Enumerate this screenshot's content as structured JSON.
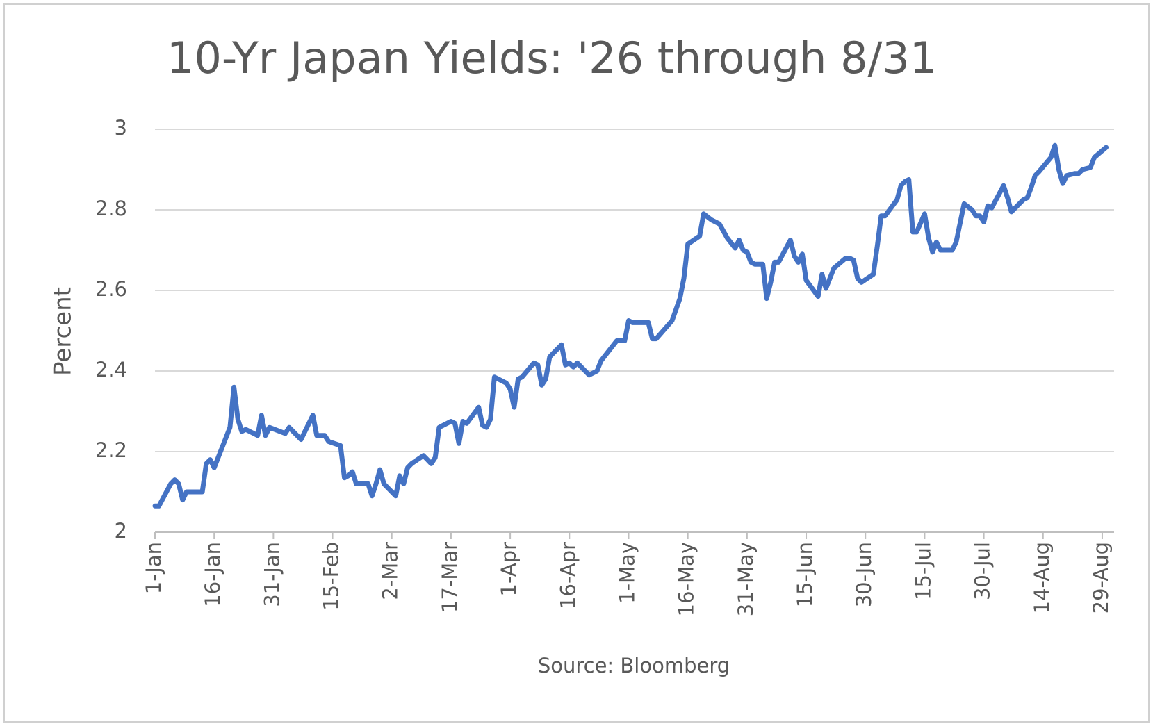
{
  "chart_data": {
    "type": "line",
    "title": "10-Yr Japan Yields: '26 through 8/31",
    "x_label": "Source: Bloomberg",
    "y_label": "Percent",
    "color": "#4472c4",
    "grid": true,
    "xlim": [
      0,
      243
    ],
    "ylim": [
      2,
      3
    ],
    "yticks": [
      2,
      2.2,
      2.4,
      2.6,
      2.8,
      3
    ],
    "xticks": [
      {
        "value": 0,
        "label": "1-Jan"
      },
      {
        "value": 15,
        "label": "16-Jan"
      },
      {
        "value": 30,
        "label": "31-Jan"
      },
      {
        "value": 45,
        "label": "15-Feb"
      },
      {
        "value": 60,
        "label": "2-Mar"
      },
      {
        "value": 75,
        "label": "17-Mar"
      },
      {
        "value": 90,
        "label": "1-Apr"
      },
      {
        "value": 105,
        "label": "16-Apr"
      },
      {
        "value": 120,
        "label": "1-May"
      },
      {
        "value": 135,
        "label": "16-May"
      },
      {
        "value": 150,
        "label": "31-May"
      },
      {
        "value": 165,
        "label": "15-Jun"
      },
      {
        "value": 180,
        "label": "30-Jun"
      },
      {
        "value": 195,
        "label": "15-Jul"
      },
      {
        "value": 210,
        "label": "30-Jul"
      },
      {
        "value": 225,
        "label": "14-Aug"
      },
      {
        "value": 240,
        "label": "29-Aug"
      }
    ],
    "x": [
      0,
      1,
      4,
      5,
      6,
      7,
      8,
      12,
      13,
      14,
      15,
      19,
      20,
      21,
      22,
      23,
      26,
      27,
      28,
      29,
      33,
      34,
      35,
      37,
      40,
      41,
      43,
      44,
      47,
      48,
      49,
      50,
      51,
      54,
      55,
      56,
      57,
      58,
      61,
      62,
      63,
      64,
      65,
      68,
      69,
      70,
      71,
      72,
      75,
      76,
      77,
      78,
      79,
      82,
      83,
      84,
      85,
      86,
      89,
      90,
      91,
      92,
      93,
      96,
      97,
      98,
      99,
      100,
      103,
      104,
      105,
      106,
      107,
      110,
      111,
      112,
      113,
      117,
      119,
      120,
      121,
      125,
      126,
      127,
      131,
      133,
      134,
      135,
      138,
      139,
      141,
      143,
      145,
      147,
      148,
      149,
      150,
      151,
      152,
      154,
      155,
      156,
      157,
      158,
      161,
      162,
      163,
      164,
      165,
      168,
      169,
      170,
      172,
      175,
      176,
      177,
      178,
      179,
      182,
      183,
      184,
      185,
      188,
      189,
      190,
      191,
      192,
      193,
      195,
      196,
      197,
      198,
      199,
      202,
      203,
      205,
      207,
      208,
      209,
      210,
      211,
      212,
      215,
      216,
      217,
      218,
      220,
      221,
      222,
      223,
      224,
      227,
      228,
      229,
      230,
      231,
      233,
      234,
      235,
      237,
      238,
      241
    ],
    "values": [
      2.065,
      2.065,
      2.12,
      2.13,
      2.12,
      2.08,
      2.1,
      2.1,
      2.17,
      2.18,
      2.16,
      2.26,
      2.36,
      2.28,
      2.25,
      2.255,
      2.24,
      2.29,
      2.24,
      2.26,
      2.245,
      2.26,
      2.25,
      2.23,
      2.29,
      2.24,
      2.24,
      2.225,
      2.215,
      2.135,
      2.14,
      2.15,
      2.12,
      2.12,
      2.09,
      2.12,
      2.155,
      2.12,
      2.09,
      2.14,
      2.12,
      2.16,
      2.17,
      2.19,
      2.18,
      2.17,
      2.185,
      2.26,
      2.275,
      2.27,
      2.22,
      2.275,
      2.27,
      2.31,
      2.265,
      2.26,
      2.28,
      2.385,
      2.37,
      2.355,
      2.31,
      2.38,
      2.385,
      2.42,
      2.415,
      2.365,
      2.38,
      2.435,
      2.465,
      2.415,
      2.42,
      2.41,
      2.42,
      2.39,
      2.395,
      2.4,
      2.425,
      2.475,
      2.475,
      2.525,
      2.52,
      2.52,
      2.48,
      2.48,
      2.525,
      2.58,
      2.63,
      2.715,
      2.735,
      2.79,
      2.775,
      2.765,
      2.73,
      2.705,
      2.725,
      2.7,
      2.695,
      2.67,
      2.665,
      2.665,
      2.58,
      2.62,
      2.67,
      2.67,
      2.725,
      2.685,
      2.67,
      2.69,
      2.625,
      2.585,
      2.64,
      2.605,
      2.655,
      2.68,
      2.68,
      2.675,
      2.63,
      2.62,
      2.64,
      2.71,
      2.785,
      2.785,
      2.825,
      2.86,
      2.87,
      2.875,
      2.745,
      2.745,
      2.79,
      2.73,
      2.695,
      2.72,
      2.7,
      2.7,
      2.72,
      2.815,
      2.8,
      2.785,
      2.785,
      2.77,
      2.81,
      2.805,
      2.86,
      2.83,
      2.795,
      2.805,
      2.825,
      2.83,
      2.855,
      2.885,
      2.895,
      2.93,
      2.96,
      2.9,
      2.865,
      2.885,
      2.89,
      2.89,
      2.9,
      2.905,
      2.93,
      2.955
    ]
  }
}
